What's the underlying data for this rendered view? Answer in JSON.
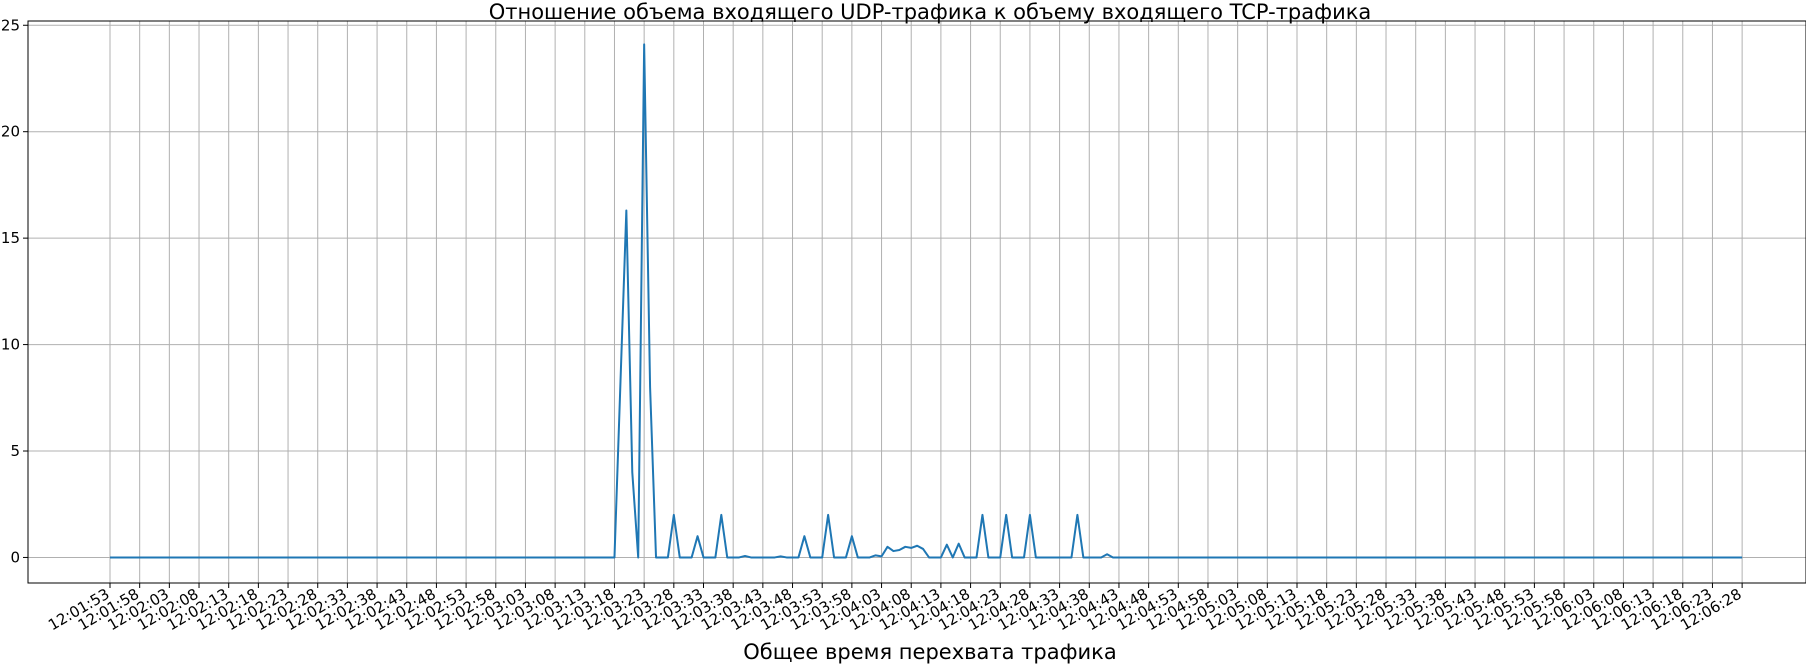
{
  "chart_data": {
    "type": "line",
    "title": "Отношение объема входящего UDP-трафика к объему входящего TCP-трафика",
    "xlabel": "Общее время перехвата трафика",
    "ylabel": "",
    "ylim": [
      -1.2,
      25.2
    ],
    "yticks": [
      0,
      5,
      10,
      15,
      20,
      25
    ],
    "grid": true,
    "start_time": "12:01:53",
    "x_tick_labels": [
      "12:01:53",
      "12:01:58",
      "12:02:03",
      "12:02:08",
      "12:02:13",
      "12:02:18",
      "12:02:23",
      "12:02:28",
      "12:02:33",
      "12:02:38",
      "12:02:43",
      "12:02:48",
      "12:02:53",
      "12:02:58",
      "12:03:03",
      "12:03:08",
      "12:03:13",
      "12:03:18",
      "12:03:23",
      "12:03:28",
      "12:03:33",
      "12:03:38",
      "12:03:43",
      "12:03:48",
      "12:03:53",
      "12:03:58",
      "12:04:03",
      "12:04:08",
      "12:04:13",
      "12:04:18",
      "12:04:23",
      "12:04:28",
      "12:04:33",
      "12:04:38",
      "12:04:43",
      "12:04:48",
      "12:04:53",
      "12:04:58",
      "12:05:03",
      "12:05:08",
      "12:05:13",
      "12:05:18",
      "12:05:23",
      "12:05:28",
      "12:05:33",
      "12:05:38",
      "12:05:43",
      "12:05:48",
      "12:05:53",
      "12:05:58",
      "12:06:03",
      "12:06:08",
      "12:06:13",
      "12:06:18",
      "12:06:23",
      "12:06:28"
    ],
    "series": [
      {
        "name": "",
        "color": "#1f77b4",
        "x": [
          "12:01:53",
          "12:03:18",
          "12:03:20",
          "12:03:21",
          "12:03:22",
          "12:03:23",
          "12:03:24",
          "12:03:25",
          "12:03:26",
          "12:03:27",
          "12:03:28",
          "12:03:29",
          "12:03:30",
          "12:03:31",
          "12:03:32",
          "12:03:33",
          "12:03:34",
          "12:03:35",
          "12:03:36",
          "12:03:37",
          "12:03:38",
          "12:03:39",
          "12:03:40",
          "12:03:41",
          "12:03:42",
          "12:03:43",
          "12:03:44",
          "12:03:45",
          "12:03:46",
          "12:03:47",
          "12:03:48",
          "12:03:49",
          "12:03:50",
          "12:03:51",
          "12:03:52",
          "12:03:53",
          "12:03:54",
          "12:03:55",
          "12:03:56",
          "12:03:57",
          "12:03:58",
          "12:03:59",
          "12:04:00",
          "12:04:01",
          "12:04:02",
          "12:04:03",
          "12:04:04",
          "12:04:05",
          "12:04:06",
          "12:04:07",
          "12:04:08",
          "12:04:09",
          "12:04:10",
          "12:04:11",
          "12:04:12",
          "12:04:13",
          "12:04:14",
          "12:04:15",
          "12:04:16",
          "12:04:17",
          "12:04:18",
          "12:04:19",
          "12:04:20",
          "12:04:21",
          "12:04:22",
          "12:04:23",
          "12:04:24",
          "12:04:25",
          "12:04:26",
          "12:04:27",
          "12:04:28",
          "12:04:29",
          "12:04:30",
          "12:04:31",
          "12:04:32",
          "12:04:33",
          "12:04:34",
          "12:04:35",
          "12:04:36",
          "12:04:37",
          "12:04:38",
          "12:04:39",
          "12:04:40",
          "12:04:41",
          "12:04:42",
          "12:04:43",
          "12:04:44",
          "12:04:45",
          "12:06:28"
        ],
        "y": [
          0,
          0,
          16.3,
          4,
          0,
          24.1,
          8,
          0,
          0,
          0,
          2,
          0,
          0,
          0,
          1,
          0,
          0,
          0,
          2,
          0,
          0,
          0,
          0.07,
          0,
          0,
          0,
          0,
          0,
          0.05,
          0,
          0,
          0,
          1,
          0,
          0,
          0,
          2,
          0,
          0,
          0,
          1,
          0,
          0,
          0,
          0.1,
          0.05,
          0.5,
          0.3,
          0.35,
          0.5,
          0.45,
          0.55,
          0.4,
          0,
          0,
          0,
          0.6,
          0,
          0.65,
          0,
          0,
          0,
          2,
          0,
          0,
          0,
          2,
          0,
          0,
          0,
          2,
          0,
          0,
          0,
          0,
          0,
          0,
          0,
          2,
          0,
          0,
          0,
          0,
          0.15,
          0,
          0,
          0,
          0,
          0
        ]
      }
    ]
  }
}
